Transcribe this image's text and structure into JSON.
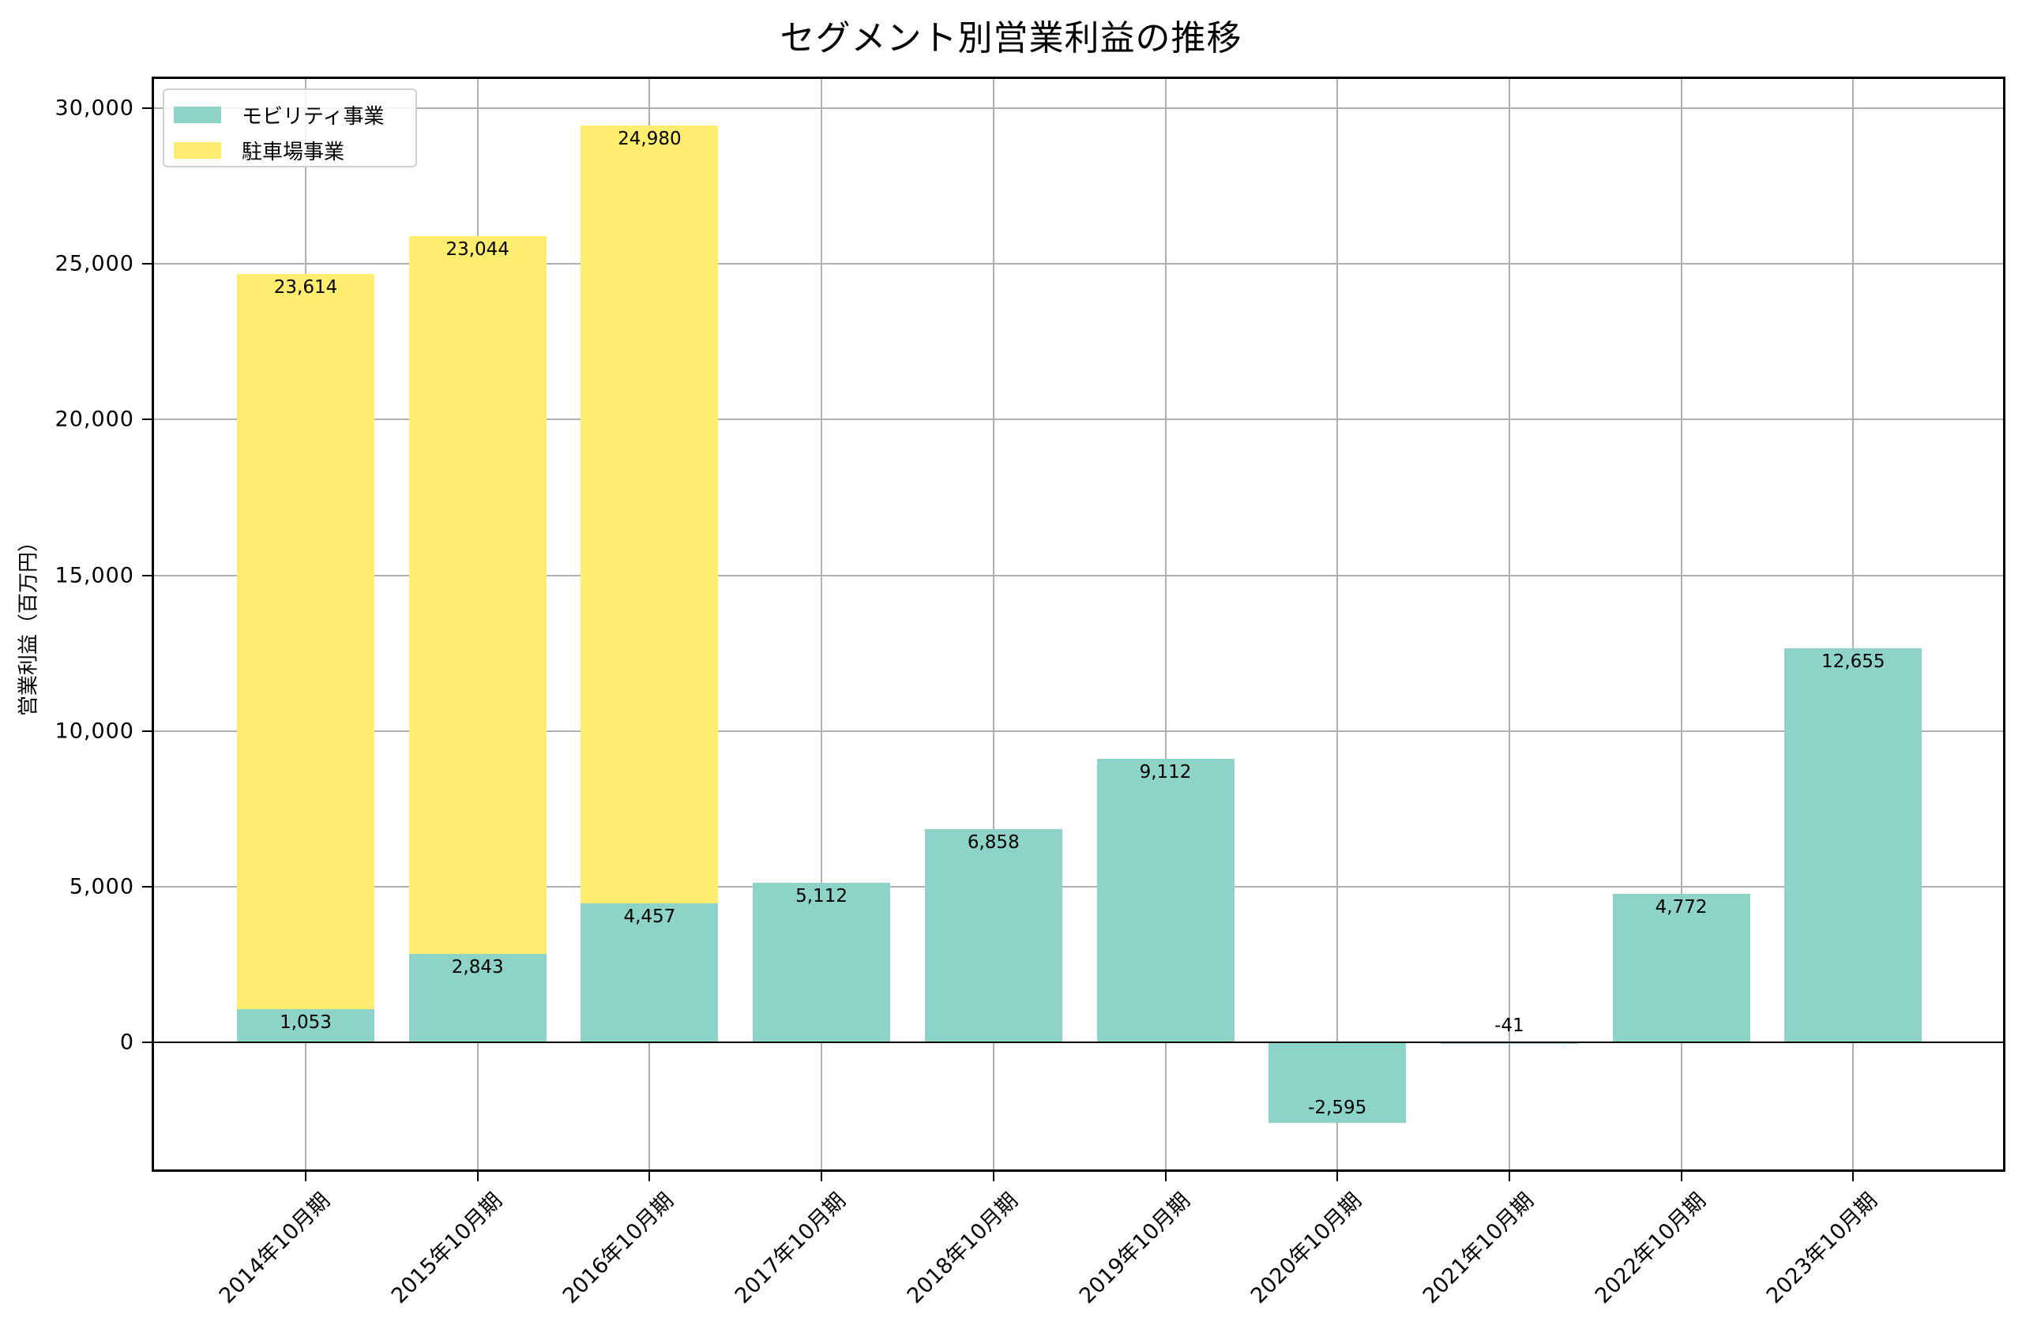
{
  "chart_data": {
    "type": "bar",
    "stacked": true,
    "title": "セグメント別営業利益の推移",
    "xlabel": "",
    "ylabel": "営業利益（百万円）",
    "ylim": [
      -4200,
      30900
    ],
    "yticks": [
      0,
      5000,
      10000,
      15000,
      20000,
      25000,
      30000
    ],
    "ytick_labels": [
      "0",
      "5,000",
      "10,000",
      "15,000",
      "20,000",
      "25,000",
      "30,000"
    ],
    "grid": true,
    "legend_position": "upper left",
    "categories": [
      "2014年10月期",
      "2015年10月期",
      "2016年10月期",
      "2017年10月期",
      "2018年10月期",
      "2019年10月期",
      "2020年10月期",
      "2021年10月期",
      "2022年10月期",
      "2023年10月期"
    ],
    "series": [
      {
        "name": "モビリティ事業",
        "color": "#8dd3c7",
        "values": [
          1053,
          2843,
          4457,
          5112,
          6858,
          9112,
          -2595,
          -41,
          4772,
          12655
        ],
        "labels": [
          "1,053",
          "2,843",
          "4,457",
          "5,112",
          "6,858",
          "9,112",
          "-2,595",
          "-41",
          "4,772",
          "12,655"
        ]
      },
      {
        "name": "駐車場事業",
        "color": "#ffed6f",
        "values": [
          23614,
          23044,
          24980,
          null,
          null,
          null,
          null,
          null,
          null,
          null
        ],
        "labels": [
          "23,614",
          "23,044",
          "24,980",
          "",
          "",
          "",
          "",
          "",
          "",
          ""
        ]
      }
    ]
  }
}
